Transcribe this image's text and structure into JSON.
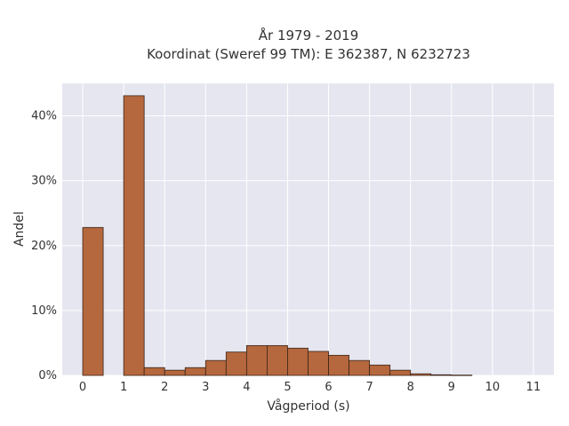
{
  "chart_data": {
    "type": "bar",
    "title": [
      "År 1979 - 2019",
      "Koordinat (Sweref 99 TM): E 362387, N 6232723"
    ],
    "xlabel": "Vågperiod (s)",
    "ylabel": "Andel",
    "bin_width": 0.5,
    "xlim": [
      -0.5,
      11.5
    ],
    "ylim": [
      0,
      45
    ],
    "x_ticks": [
      0,
      1,
      2,
      3,
      4,
      5,
      6,
      7,
      8,
      9,
      10,
      11
    ],
    "x_tick_labels": [
      "0",
      "1",
      "2",
      "3",
      "4",
      "5",
      "6",
      "7",
      "8",
      "9",
      "10",
      "11"
    ],
    "y_ticks": [
      0,
      10,
      20,
      30,
      40
    ],
    "y_tick_labels": [
      "0%",
      "10%",
      "20%",
      "30%",
      "40%"
    ],
    "bins": [
      {
        "start": 0.0,
        "value": 22.8
      },
      {
        "start": 1.0,
        "value": 43.1
      },
      {
        "start": 1.5,
        "value": 1.2
      },
      {
        "start": 2.0,
        "value": 0.8
      },
      {
        "start": 2.5,
        "value": 1.2
      },
      {
        "start": 3.0,
        "value": 2.3
      },
      {
        "start": 3.5,
        "value": 3.6
      },
      {
        "start": 4.0,
        "value": 4.6
      },
      {
        "start": 4.5,
        "value": 4.6
      },
      {
        "start": 5.0,
        "value": 4.2
      },
      {
        "start": 5.5,
        "value": 3.7
      },
      {
        "start": 6.0,
        "value": 3.1
      },
      {
        "start": 6.5,
        "value": 2.3
      },
      {
        "start": 7.0,
        "value": 1.6
      },
      {
        "start": 7.5,
        "value": 0.8
      },
      {
        "start": 8.0,
        "value": 0.25
      },
      {
        "start": 8.5,
        "value": 0.1
      },
      {
        "start": 9.0,
        "value": 0.05
      }
    ],
    "grid": true,
    "colors": {
      "bar_fill": "#b5673d",
      "bar_edge": "#3b2418",
      "plot_background": "#e5e6f0",
      "grid": "#ffffff"
    }
  }
}
